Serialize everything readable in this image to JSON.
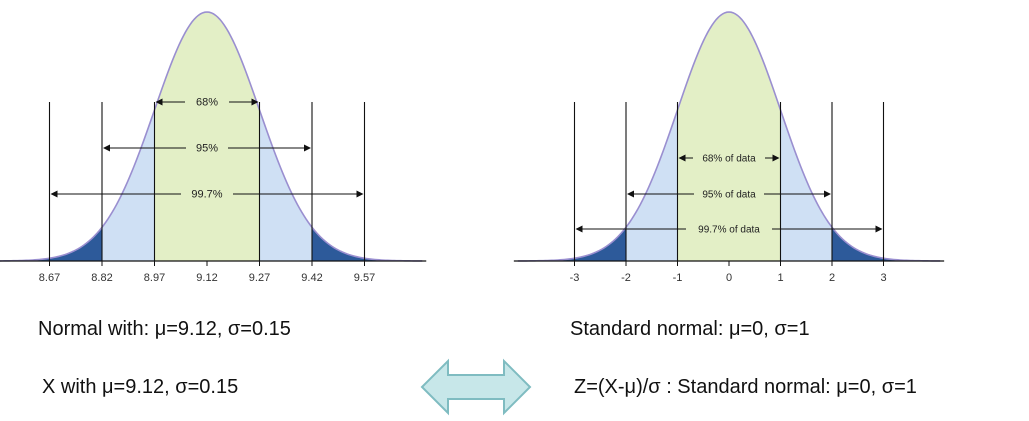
{
  "colors": {
    "center_band": "#e3efc6",
    "mid_band": "#cfe0f4",
    "tail": "#2d5a9a",
    "curve": "#9a8fd0",
    "line": "#111111",
    "arrow_fill": "#c7e7e9",
    "arrow_stroke": "#7fbcc1"
  },
  "icons": {
    "double_arrow": "double-headed-arrow-icon"
  },
  "left_chart": {
    "ticks": [
      "8.67",
      "8.82",
      "8.97",
      "9.12",
      "9.27",
      "9.42",
      "9.57"
    ],
    "bands": [
      {
        "label": "68%",
        "sigma": 1
      },
      {
        "label": "95%",
        "sigma": 2
      },
      {
        "label": "99.7%",
        "sigma": 3
      }
    ]
  },
  "right_chart": {
    "ticks": [
      "-3",
      "-2",
      "-1",
      "0",
      "1",
      "2",
      "3"
    ],
    "bands": [
      {
        "label": "68% of data",
        "sigma": 1
      },
      {
        "label": "95% of data",
        "sigma": 2
      },
      {
        "label": "99.7% of data",
        "sigma": 3
      }
    ]
  },
  "captions": {
    "left_1": "Normal with: μ=9.12, σ=0.15",
    "left_2": "X with μ=9.12, σ=0.15",
    "right_1": "Standard normal: μ=0, σ=1",
    "right_2": "Z=(X-μ)/σ : Standard normal: μ=0, σ=1"
  }
}
